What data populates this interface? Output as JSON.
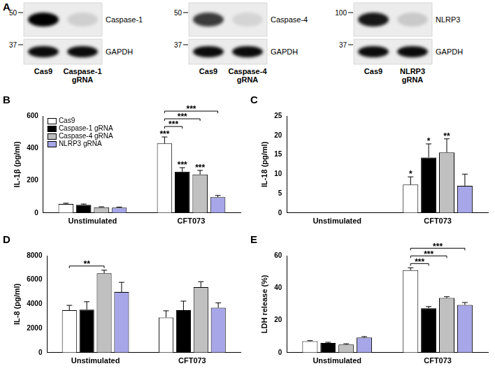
{
  "panel_a": {
    "panel": "A",
    "blots": [
      {
        "lanes": [
          [
            "Cas9"
          ],
          [
            "Caspase-1",
            "gRNA"
          ]
        ],
        "rows": [
          {
            "label": "Caspase-1",
            "marker": 50,
            "intensity": [
              1.0,
              0.12
            ]
          },
          {
            "label": "GAPDH",
            "marker": 37,
            "intensity": [
              0.95,
              0.95
            ]
          }
        ]
      },
      {
        "lanes": [
          [
            "Cas9"
          ],
          [
            "Caspase-4",
            "gRNA"
          ]
        ],
        "rows": [
          {
            "label": "Caspase-4",
            "marker": 50,
            "intensity": [
              0.75,
              0.1
            ]
          },
          {
            "label": "GAPDH",
            "marker": 37,
            "intensity": [
              0.95,
              0.95
            ]
          }
        ]
      },
      {
        "lanes": [
          [
            "Cas9"
          ],
          [
            "NLRP3",
            "gRNA"
          ]
        ],
        "rows": [
          {
            "label": "NLRP3",
            "marker": 100,
            "intensity": [
              0.9,
              0.15
            ]
          },
          {
            "label": "GAPDH",
            "marker": 37,
            "intensity": [
              0.95,
              0.95
            ]
          }
        ]
      }
    ]
  },
  "chart_data": [
    {
      "type": "bar",
      "panel": "B",
      "y_label": "IL-1β (pg/ml)",
      "categories": [
        "Unstimulated",
        "CFT073"
      ],
      "series": [
        {
          "name": "Cas9",
          "color": "#ffffff",
          "values": [
            55,
            430
          ],
          "errors": [
            5,
            40
          ]
        },
        {
          "name": "Caspase-1 gRNA",
          "color": "#000000",
          "values": [
            50,
            255
          ],
          "errors": [
            5,
            25
          ]
        },
        {
          "name": "Caspase-4 gRNA",
          "color": "#c0c0c0",
          "values": [
            35,
            238
          ],
          "errors": [
            3,
            25
          ]
        },
        {
          "name": "NLRP3 gRNA",
          "color": "#a6a6e8",
          "values": [
            33,
            98
          ],
          "errors": [
            3,
            10
          ]
        }
      ],
      "ylim": [
        0,
        600
      ],
      "yticks": [
        0,
        200,
        400,
        600
      ],
      "grid": false,
      "legend": "upper left",
      "annotations": [
        {
          "category": "CFT073",
          "series": "Cas9",
          "text": "***"
        },
        {
          "category": "CFT073",
          "series": "Caspase-1 gRNA",
          "text": "***"
        },
        {
          "category": "CFT073",
          "series": "Caspase-4 gRNA",
          "text": "***"
        }
      ],
      "comparisons": [
        {
          "category": "CFT073",
          "from": "Cas9",
          "to": "Caspase-1 gRNA",
          "text": "***"
        },
        {
          "category": "CFT073",
          "from": "Cas9",
          "to": "Caspase-4 gRNA",
          "text": "***"
        },
        {
          "category": "CFT073",
          "from": "Cas9",
          "to": "NLRP3 gRNA",
          "text": "***"
        }
      ]
    },
    {
      "type": "bar",
      "panel": "C",
      "y_label": "IL-18 (pg/ml)",
      "categories": [
        "Unstimulated",
        "CFT073"
      ],
      "series": [
        {
          "name": "Cas9",
          "color": "#ffffff",
          "values": [
            0,
            7.3
          ],
          "errors": [
            0,
            2
          ]
        },
        {
          "name": "Caspase-1 gRNA",
          "color": "#000000",
          "values": [
            0,
            14.3
          ],
          "errors": [
            0,
            3.5
          ]
        },
        {
          "name": "Caspase-4 gRNA",
          "color": "#c0c0c0",
          "values": [
            0,
            15.6
          ],
          "errors": [
            0,
            3.5
          ]
        },
        {
          "name": "NLRP3 gRNA",
          "color": "#a6a6e8",
          "values": [
            0,
            7
          ],
          "errors": [
            0,
            3
          ]
        }
      ],
      "ylim": [
        0,
        25
      ],
      "yticks": [
        0,
        5,
        10,
        15,
        20,
        25
      ],
      "grid": false,
      "annotations": [
        {
          "category": "CFT073",
          "series": "Cas9",
          "text": "*"
        },
        {
          "category": "CFT073",
          "series": "Caspase-1 gRNA",
          "text": "*"
        },
        {
          "category": "CFT073",
          "series": "Caspase-4 gRNA",
          "text": "**"
        }
      ],
      "comparisons": []
    },
    {
      "type": "bar",
      "panel": "D",
      "y_label": "IL-8 (pg/ml)",
      "categories": [
        "Unstimulated",
        "CFT073"
      ],
      "series": [
        {
          "name": "Cas9",
          "color": "#ffffff",
          "values": [
            3500,
            2900
          ],
          "errors": [
            400,
            550
          ]
        },
        {
          "name": "Caspase-1 gRNA",
          "color": "#000000",
          "values": [
            3550,
            3500
          ],
          "errors": [
            650,
            750
          ]
        },
        {
          "name": "Caspase-4 gRNA",
          "color": "#c0c0c0",
          "values": [
            6550,
            5400
          ],
          "errors": [
            250,
            450
          ]
        },
        {
          "name": "NLRP3 gRNA",
          "color": "#a6a6e8",
          "values": [
            5000,
            3700
          ],
          "errors": [
            800,
            400
          ]
        }
      ],
      "ylim": [
        0,
        8000
      ],
      "yticks": [
        0,
        2000,
        4000,
        6000,
        8000
      ],
      "grid": false,
      "annotations": [],
      "comparisons": [
        {
          "category": "Unstimulated",
          "from": "Cas9",
          "to": "Caspase-4 gRNA",
          "text": "**"
        }
      ]
    },
    {
      "type": "bar",
      "panel": "E",
      "y_label": "LDH release (%)",
      "categories": [
        "Unstimulated",
        "CFT073"
      ],
      "series": [
        {
          "name": "Cas9",
          "color": "#ffffff",
          "values": [
            7,
            51
          ],
          "errors": [
            0.4,
            1.5
          ]
        },
        {
          "name": "Caspase-1 gRNA",
          "color": "#000000",
          "values": [
            6,
            27.5
          ],
          "errors": [
            0.4,
            1
          ]
        },
        {
          "name": "Caspase-4 gRNA",
          "color": "#c0c0c0",
          "values": [
            5,
            33.8
          ],
          "errors": [
            0.5,
            0.8
          ]
        },
        {
          "name": "NLRP3 gRNA",
          "color": "#a6a6e8",
          "values": [
            9.3,
            29.5
          ],
          "errors": [
            0.6,
            1.5
          ]
        }
      ],
      "ylim": [
        0,
        60
      ],
      "yticks": [
        0,
        20,
        40,
        60
      ],
      "grid": false,
      "annotations": [],
      "comparisons": [
        {
          "category": "CFT073",
          "from": "Cas9",
          "to": "Caspase-1 gRNA",
          "text": "***"
        },
        {
          "category": "CFT073",
          "from": "Cas9",
          "to": "Caspase-4 gRNA",
          "text": "***"
        },
        {
          "category": "CFT073",
          "from": "Cas9",
          "to": "NLRP3 gRNA",
          "text": "***"
        }
      ]
    }
  ]
}
